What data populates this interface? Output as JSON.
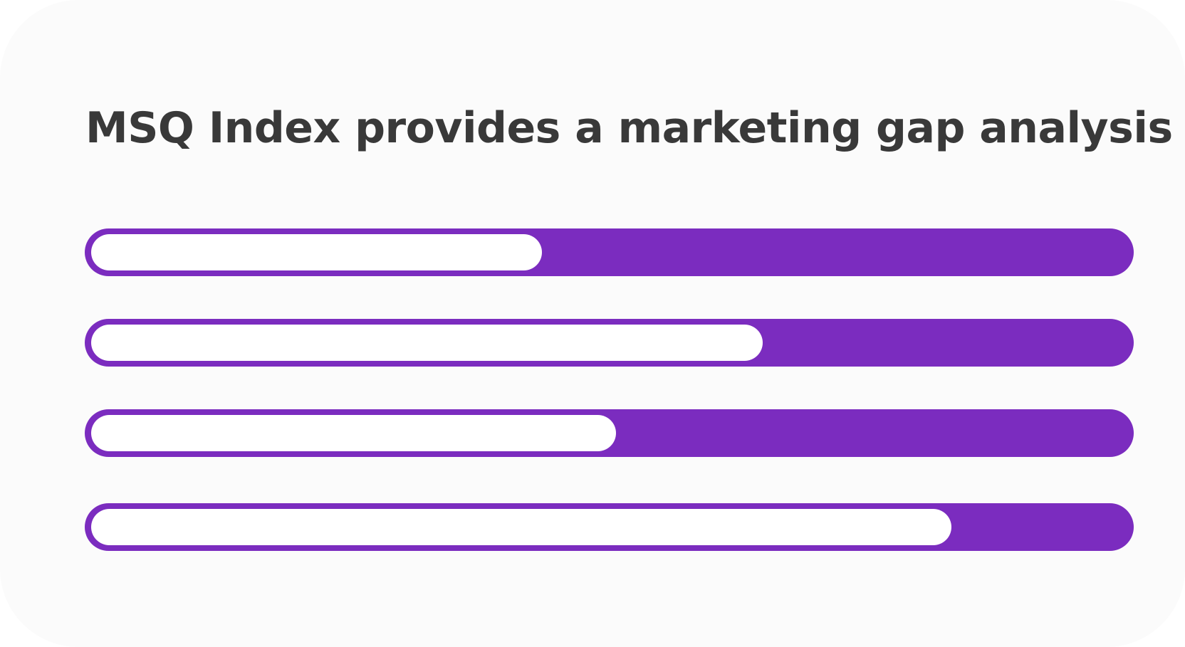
{
  "title": "MSQ Index provides a marketing gap analysis",
  "colors": {
    "card_background": "#fbfbfb",
    "bar_accent": "#7b2cbf",
    "bar_fill": "#ffffff",
    "title_text": "#393939"
  },
  "bars": [
    {
      "fill_fraction": 0.43
    },
    {
      "fill_fraction": 0.64
    },
    {
      "fill_fraction": 0.5
    },
    {
      "fill_fraction": 0.82
    }
  ]
}
